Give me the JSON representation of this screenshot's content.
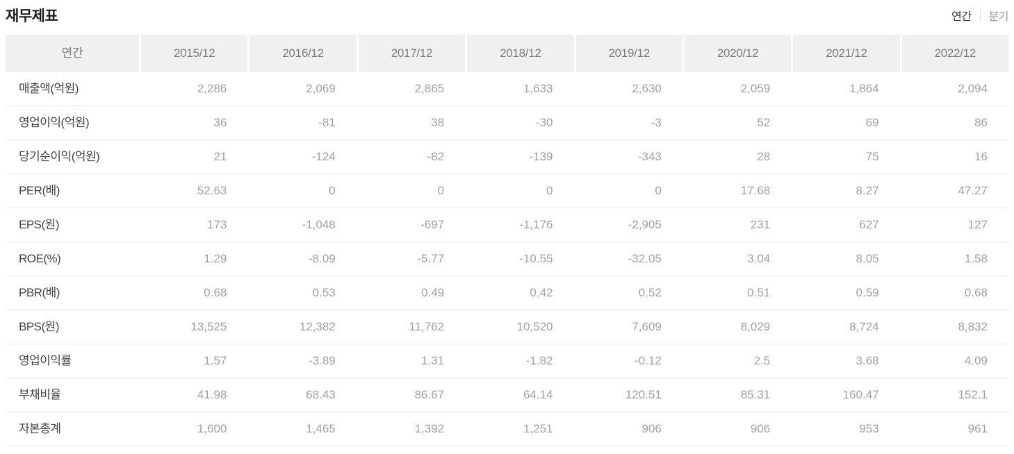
{
  "header": {
    "title": "재무제표",
    "toggle_annual": "연간",
    "toggle_quarterly": "분기",
    "toggle_active": "연간"
  },
  "colors": {
    "header_bg": "#f0f0f0",
    "header_text": "#7b7b7b",
    "row_label_text": "#454545",
    "value_text": "#a1a1a1",
    "row_border": "#e7e7e7",
    "toggle_active": "#333333",
    "toggle_inactive": "#979797"
  },
  "table": {
    "columns": [
      "연간",
      "2015/12",
      "2016/12",
      "2017/12",
      "2018/12",
      "2019/12",
      "2020/12",
      "2021/12",
      "2022/12"
    ],
    "rows": [
      {
        "label": "매출액(억원)",
        "values": [
          "2,286",
          "2,069",
          "2,865",
          "1,633",
          "2,630",
          "2,059",
          "1,864",
          "2,094"
        ]
      },
      {
        "label": "영업이익(억원)",
        "values": [
          "36",
          "-81",
          "38",
          "-30",
          "-3",
          "52",
          "69",
          "86"
        ]
      },
      {
        "label": "당기순이익(억원)",
        "values": [
          "21",
          "-124",
          "-82",
          "-139",
          "-343",
          "28",
          "75",
          "16"
        ]
      },
      {
        "label": "PER(배)",
        "values": [
          "52.63",
          "0",
          "0",
          "0",
          "0",
          "17.68",
          "8.27",
          "47.27"
        ]
      },
      {
        "label": "EPS(원)",
        "values": [
          "173",
          "-1,048",
          "-697",
          "-1,176",
          "-2,905",
          "231",
          "627",
          "127"
        ]
      },
      {
        "label": "ROE(%)",
        "values": [
          "1.29",
          "-8.09",
          "-5.77",
          "-10.55",
          "-32.05",
          "3.04",
          "8.05",
          "1.58"
        ]
      },
      {
        "label": "PBR(배)",
        "values": [
          "0.68",
          "0.53",
          "0.49",
          "0.42",
          "0.52",
          "0.51",
          "0.59",
          "0.68"
        ]
      },
      {
        "label": "BPS(원)",
        "values": [
          "13,525",
          "12,382",
          "11,762",
          "10,520",
          "7,609",
          "8,029",
          "8,724",
          "8,832"
        ]
      },
      {
        "label": "영업이익률",
        "values": [
          "1.57",
          "-3.89",
          "1.31",
          "-1.82",
          "-0.12",
          "2.5",
          "3.68",
          "4.09"
        ]
      },
      {
        "label": "부채비율",
        "values": [
          "41.98",
          "68.43",
          "86.67",
          "64.14",
          "120.51",
          "85.31",
          "160.47",
          "152.1"
        ]
      },
      {
        "label": "자본총계",
        "values": [
          "1,600",
          "1,465",
          "1,392",
          "1,251",
          "906",
          "906",
          "953",
          "961"
        ]
      }
    ]
  }
}
